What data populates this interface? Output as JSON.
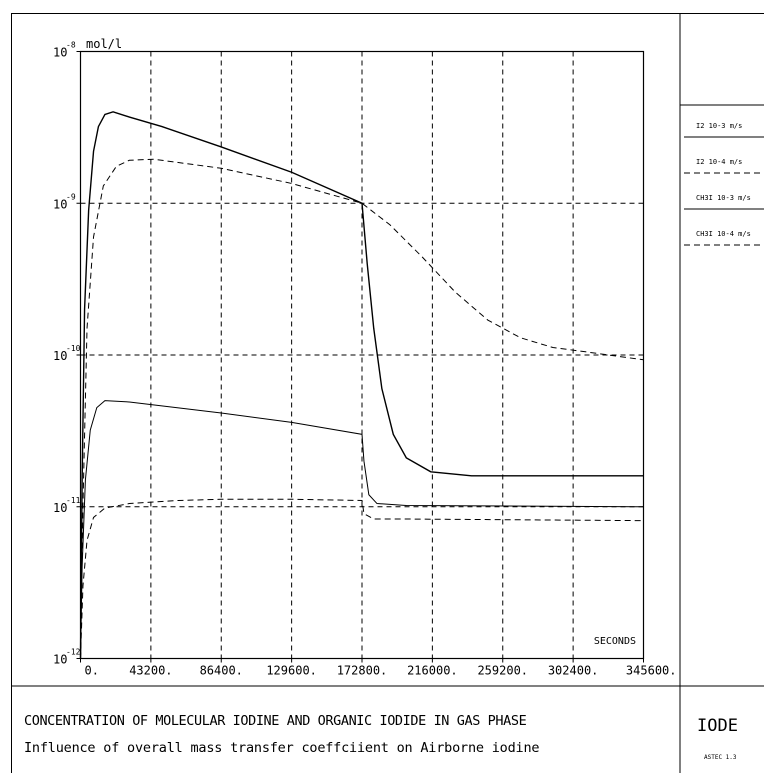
{
  "chart_data": {
    "type": "line",
    "y_unit_label": "mol/l",
    "x_axis_label": "SECONDS",
    "y_scale": "log",
    "ylim": [
      1e-12,
      1e-08
    ],
    "xlim": [
      0,
      345600
    ],
    "grid": true,
    "legend_position": "right",
    "x_ticks": [
      0,
      43200,
      86400,
      129600,
      172800,
      216000,
      259200,
      302400,
      345600
    ],
    "x_tick_labels": [
      "0.",
      "43200.",
      "86400.",
      "129600.",
      "172800.",
      "216000.",
      "259200.",
      "302400.",
      "345600."
    ],
    "y_tick_labels": [
      {
        "value": 1e-08,
        "base": "10",
        "exp": "-8"
      },
      {
        "value": 1e-09,
        "base": "10",
        "exp": "-9"
      },
      {
        "value": 1e-10,
        "base": "10",
        "exp": "-10"
      },
      {
        "value": 1e-11,
        "base": "10",
        "exp": "-11"
      },
      {
        "value": 1e-12,
        "base": "10",
        "exp": "-12"
      }
    ],
    "series": [
      {
        "name": "I2 10-3 m/s",
        "style": "solid",
        "width": 1.4,
        "color": "#000000",
        "points": [
          [
            0,
            1e-12
          ],
          [
            1000,
            1.5e-11
          ],
          [
            2500,
            2e-10
          ],
          [
            5000,
            9e-10
          ],
          [
            8000,
            2.2e-09
          ],
          [
            11000,
            3.2e-09
          ],
          [
            15000,
            3.85e-09
          ],
          [
            20000,
            4e-09
          ],
          [
            30000,
            3.7e-09
          ],
          [
            50000,
            3.2e-09
          ],
          [
            86400,
            2.35e-09
          ],
          [
            129600,
            1.6e-09
          ],
          [
            172800,
            1e-09
          ],
          [
            176000,
            4e-10
          ],
          [
            180000,
            1.5e-10
          ],
          [
            185000,
            6e-11
          ],
          [
            192000,
            3e-11
          ],
          [
            200000,
            2.1e-11
          ],
          [
            215000,
            1.7e-11
          ],
          [
            240000,
            1.6e-11
          ],
          [
            345600,
            1.6e-11
          ]
        ]
      },
      {
        "name": "I2 10-4 m/s",
        "style": "dashed",
        "width": 1.0,
        "color": "#000000",
        "points": [
          [
            0,
            1e-12
          ],
          [
            1500,
            1e-11
          ],
          [
            4000,
            1.5e-10
          ],
          [
            8000,
            6e-10
          ],
          [
            14000,
            1.3e-09
          ],
          [
            22000,
            1.75e-09
          ],
          [
            30000,
            1.92e-09
          ],
          [
            45000,
            1.95e-09
          ],
          [
            86400,
            1.7e-09
          ],
          [
            129600,
            1.35e-09
          ],
          [
            172800,
            1e-09
          ],
          [
            190000,
            7.2e-10
          ],
          [
            210000,
            4.4e-10
          ],
          [
            230000,
            2.6e-10
          ],
          [
            250000,
            1.7e-10
          ],
          [
            270000,
            1.3e-10
          ],
          [
            290000,
            1.12e-10
          ],
          [
            310000,
            1.05e-10
          ],
          [
            330000,
            9.8e-11
          ],
          [
            345600,
            9.3e-11
          ]
        ]
      },
      {
        "name": "CH3I 10-3 m/s",
        "style": "solid",
        "width": 1.0,
        "color": "#000000",
        "points": [
          [
            0,
            1e-12
          ],
          [
            1000,
            4e-12
          ],
          [
            3000,
            1.5e-11
          ],
          [
            6000,
            3.2e-11
          ],
          [
            10000,
            4.5e-11
          ],
          [
            15000,
            5e-11
          ],
          [
            30000,
            4.9e-11
          ],
          [
            86400,
            4.15e-11
          ],
          [
            129600,
            3.6e-11
          ],
          [
            172800,
            3e-11
          ],
          [
            174000,
            2e-11
          ],
          [
            177000,
            1.2e-11
          ],
          [
            182000,
            1.05e-11
          ],
          [
            200000,
            1.02e-11
          ],
          [
            345600,
            1e-11
          ]
        ]
      },
      {
        "name": "CH3I 10-4 m/s",
        "style": "dashed",
        "width": 1.0,
        "color": "#000000",
        "points": [
          [
            0,
            1e-12
          ],
          [
            1500,
            3e-12
          ],
          [
            4000,
            6e-12
          ],
          [
            8000,
            8.5e-12
          ],
          [
            15000,
            9.8e-12
          ],
          [
            30000,
            1.05e-11
          ],
          [
            60000,
            1.1e-11
          ],
          [
            86400,
            1.12e-11
          ],
          [
            129600,
            1.12e-11
          ],
          [
            172800,
            1.1e-11
          ],
          [
            174000,
            9e-12
          ],
          [
            180000,
            8.3e-12
          ],
          [
            200000,
            8.3e-12
          ],
          [
            345600,
            8.1e-12
          ]
        ]
      }
    ]
  },
  "legend": [
    {
      "label": "I2 10-3 m/s",
      "style": "solid"
    },
    {
      "label": "I2 10-4 m/s",
      "style": "dashed"
    },
    {
      "label": "CH3I 10-3 m/s",
      "style": "solid"
    },
    {
      "label": "CH3I 10-4 m/s",
      "style": "dashed"
    }
  ],
  "caption": {
    "title": "CONCENTRATION OF MOLECULAR IODINE AND ORGANIC IODIDE IN GAS PHASE",
    "subtitle": "Influence of overall mass transfer coeffciient on Airborne iodine",
    "code_name": "IODE",
    "version": "ASTEC 1.3"
  }
}
